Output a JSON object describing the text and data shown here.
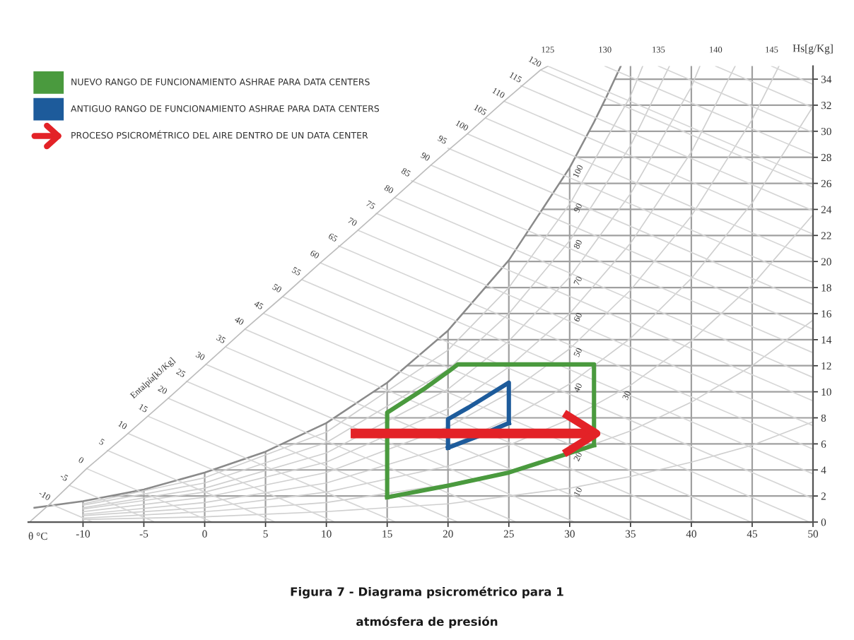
{
  "chart_data": {
    "type": "line",
    "title": "Figura 7 - Diagrama psicrométrico para 1\natmósfera de presión",
    "xlabel": "θ °C",
    "ylabel": "Hs[g/Kg]",
    "xlim": [
      -14.5,
      50
    ],
    "ylim": [
      0,
      35
    ],
    "xticks": [
      -10,
      -5,
      0,
      5,
      10,
      15,
      20,
      25,
      30,
      35,
      40,
      45,
      50
    ],
    "yticks": [
      0,
      2,
      4,
      6,
      8,
      10,
      12,
      14,
      16,
      18,
      20,
      22,
      24,
      26,
      28,
      30,
      32,
      34
    ],
    "grid": true,
    "legend": "top left",
    "series": [
      {
        "color": "#8a8a8a",
        "x": [
          -14,
          -10,
          -5,
          0,
          5,
          10,
          15,
          20,
          25,
          30,
          32,
          33,
          34.2
        ],
        "values": [
          1.1,
          1.6,
          2.5,
          3.8,
          5.4,
          7.6,
          10.7,
          14.7,
          20.1,
          27.2,
          30.7,
          32.6,
          35
        ]
      },
      {
        "color": "#cfcfcf",
        "x": [
          -10,
          0,
          10,
          20,
          25,
          30,
          35,
          40,
          45,
          50
        ],
        "values": [
          0.2,
          0.4,
          0.8,
          1.4,
          2.0,
          2.6,
          3.5,
          4.6,
          5.9,
          7.7
        ]
      },
      {
        "color": "#cfcfcf",
        "x": [
          -10,
          0,
          10,
          20,
          25,
          30,
          35,
          40,
          45,
          50
        ],
        "values": [
          0.3,
          0.8,
          1.5,
          2.9,
          3.9,
          5.3,
          7.0,
          9.2,
          12.0,
          15.5
        ]
      },
      {
        "color": "#cfcfcf",
        "x": [
          -10,
          0,
          10,
          20,
          25,
          30,
          35,
          40,
          45,
          50
        ],
        "values": [
          0.5,
          1.1,
          2.3,
          4.3,
          5.9,
          7.9,
          10.5,
          13.9,
          18.2,
          23.6
        ]
      },
      {
        "color": "#cfcfcf",
        "x": [
          -10,
          0,
          10,
          20,
          25,
          30,
          35,
          40,
          45,
          50
        ],
        "values": [
          0.6,
          1.5,
          3.0,
          5.8,
          7.9,
          10.6,
          14.1,
          18.7,
          24.5,
          31.9
        ]
      },
      {
        "color": "#cfcfcf",
        "x": [
          -10,
          0,
          10,
          20,
          25,
          30,
          35,
          40,
          45,
          47.2
        ],
        "values": [
          0.8,
          1.9,
          3.8,
          7.3,
          9.9,
          13.3,
          17.8,
          23.5,
          30.9,
          35
        ]
      },
      {
        "color": "#cfcfcf",
        "x": [
          -10,
          0,
          10,
          20,
          25,
          30,
          35,
          40,
          43.6
        ],
        "values": [
          1.0,
          2.3,
          4.6,
          8.7,
          11.9,
          16.0,
          21.4,
          28.4,
          35
        ]
      },
      {
        "color": "#cfcfcf",
        "x": [
          -10,
          0,
          10,
          20,
          25,
          30,
          35,
          40,
          40.7
        ],
        "values": [
          1.1,
          2.6,
          5.3,
          10.2,
          13.9,
          18.8,
          25.2,
          33.4,
          35
        ]
      },
      {
        "color": "#cfcfcf",
        "x": [
          -10,
          0,
          10,
          20,
          25,
          30,
          35,
          38.2
        ],
        "values": [
          1.3,
          3.0,
          6.1,
          11.7,
          16.0,
          21.6,
          28.9,
          35
        ]
      },
      {
        "color": "#cfcfcf",
        "x": [
          -10,
          0,
          10,
          20,
          25,
          30,
          35,
          36.0
        ],
        "values": [
          1.4,
          3.4,
          6.9,
          13.2,
          18.0,
          24.4,
          32.7,
          35
        ]
      },
      {
        "color": "#d6d6d6",
        "x": [
          -12.7,
          -9.2
        ],
        "values": [
          1.4,
          0
        ]
      },
      {
        "color": "#d6d6d6",
        "x": [
          -11.1,
          -4.1
        ],
        "values": [
          2.8,
          0
        ]
      },
      {
        "color": "#d6d6d6",
        "x": [
          -9.7,
          0.6
        ],
        "values": [
          4.1,
          0
        ]
      },
      {
        "color": "#d6d6d6",
        "x": [
          -8.0,
          5.8
        ],
        "values": [
          5.5,
          0
        ]
      },
      {
        "color": "#d6d6d6",
        "x": [
          -6.3,
          10.7
        ],
        "values": [
          6.8,
          0
        ]
      },
      {
        "color": "#d6d6d6",
        "x": [
          -4.6,
          15.7
        ],
        "values": [
          8.1,
          0
        ]
      },
      {
        "color": "#d6d6d6",
        "x": [
          -3.0,
          20.8
        ],
        "values": [
          9.5,
          0
        ]
      },
      {
        "color": "#d6d6d6",
        "x": [
          -1.5,
          25.6
        ],
        "values": [
          10.8,
          0
        ]
      },
      {
        "color": "#d6d6d6",
        "x": [
          0.1,
          30.4
        ],
        "values": [
          12.1,
          0
        ]
      },
      {
        "color": "#d6d6d6",
        "x": [
          1.8,
          35.3
        ],
        "values": [
          13.4,
          0
        ]
      },
      {
        "color": "#d6d6d6",
        "x": [
          3.3,
          40.3
        ],
        "values": [
          14.8,
          0
        ]
      },
      {
        "color": "#d6d6d6",
        "x": [
          4.9,
          44.9
        ],
        "values": [
          16.0,
          0
        ]
      },
      {
        "color": "#d6d6d6",
        "x": [
          6.4,
          49.7
        ],
        "values": [
          17.3,
          0
        ]
      },
      {
        "color": "#d6d6d6",
        "x": [
          8.0,
          50
        ],
        "values": [
          18.6,
          1.8
        ]
      },
      {
        "color": "#d6d6d6",
        "x": [
          9.5,
          50
        ],
        "values": [
          19.9,
          3.7
        ]
      },
      {
        "color": "#d6d6d6",
        "x": [
          11.0,
          50
        ],
        "values": [
          21.2,
          5.6
        ]
      },
      {
        "color": "#d6d6d6",
        "x": [
          12.6,
          50
        ],
        "values": [
          22.4,
          7.4
        ]
      },
      {
        "color": "#d6d6d6",
        "x": [
          14.1,
          50
        ],
        "values": [
          23.7,
          9.3
        ]
      },
      {
        "color": "#d6d6d6",
        "x": [
          15.6,
          50
        ],
        "values": [
          24.9,
          11.1
        ]
      },
      {
        "color": "#d6d6d6",
        "x": [
          17.0,
          50
        ],
        "values": [
          26.2,
          13.0
        ]
      },
      {
        "color": "#d6d6d6",
        "x": [
          18.6,
          50
        ],
        "values": [
          27.4,
          14.8
        ]
      },
      {
        "color": "#d6d6d6",
        "x": [
          20.0,
          50
        ],
        "values": [
          28.7,
          16.7
        ]
      },
      {
        "color": "#d6d6d6",
        "x": [
          21.6,
          50
        ],
        "values": [
          29.8,
          18.4
        ]
      },
      {
        "color": "#d6d6d6",
        "x": [
          23.1,
          50
        ],
        "values": [
          31.0,
          20.2
        ]
      },
      {
        "color": "#d6d6d6",
        "x": [
          24.6,
          50
        ],
        "values": [
          32.3,
          22.1
        ]
      },
      {
        "color": "#d6d6d6",
        "x": [
          26.0,
          50
        ],
        "values": [
          33.5,
          23.9
        ]
      },
      {
        "color": "#d6d6d6",
        "x": [
          27.6,
          50
        ],
        "values": [
          34.7,
          25.7
        ]
      },
      {
        "color": "#d6d6d6",
        "x": [
          28.2,
          50
        ],
        "values": [
          35,
          26.3
        ]
      },
      {
        "color": "#d6d6d6",
        "x": [
          32.9,
          50
        ],
        "values": [
          35,
          28.2
        ]
      },
      {
        "color": "#d6d6d6",
        "x": [
          37.3,
          50
        ],
        "values": [
          35,
          29.9
        ]
      },
      {
        "color": "#d6d6d6",
        "x": [
          42.0,
          50
        ],
        "values": [
          35,
          31.8
        ]
      },
      {
        "color": "#d6d6d6",
        "x": [
          46.6,
          50
        ],
        "values": [
          35,
          33.6
        ]
      },
      {
        "color": "#bdbdbd",
        "x": [
          -14.4,
          -12.7,
          -9.7,
          -6.3,
          -3.0,
          0.1,
          3.3,
          6.4,
          9.5,
          12.6,
          15.6,
          18.6,
          21.6,
          24.6,
          27.6,
          28.2
        ],
        "values": [
          0,
          1.4,
          4.1,
          6.8,
          9.5,
          12.1,
          14.8,
          17.3,
          19.9,
          22.4,
          24.9,
          27.4,
          29.8,
          32.3,
          34.7,
          35
        ]
      },
      {
        "name": "NUEVO RANGO DE FUNCIONAMIENTO ASHRAE PARA DATA CENTERS",
        "color": "#4a9a3e",
        "x": [
          15,
          15,
          18,
          20.1,
          20.8,
          32,
          32
        ],
        "values": [
          1.9,
          8.4,
          10.2,
          11.6,
          12.1,
          12.1,
          5.9
        ]
      },
      {
        "color": "#4a9a3e",
        "x": [
          15,
          20,
          25,
          28,
          32
        ],
        "values": [
          1.9,
          2.8,
          3.8,
          4.7,
          5.9
        ]
      },
      {
        "name": "ANTIGUO RANGO DE FUNCIONAMIENTO ASHRAE PARA DATA CENTERS",
        "color": "#1d5b9b",
        "x": [
          20,
          20,
          21.7,
          25,
          25
        ],
        "values": [
          5.7,
          7.9,
          8.8,
          10.7,
          7.6
        ]
      },
      {
        "color": "#1d5b9b",
        "x": [
          20,
          22.5,
          25
        ],
        "values": [
          5.7,
          6.6,
          7.6
        ]
      },
      {
        "name": "PROCESO PSICROMÉTRICO DEL AIRE DENTRO DE UN DATA CENTER",
        "color": "#e32227",
        "x": [
          12,
          32.2
        ],
        "values": [
          6.8,
          6.8
        ]
      }
    ],
    "annotations": [
      "Entalpía[kJ/Kg]",
      {
        "text": "-10",
        "x": -12.7,
        "y": 1.4
      },
      {
        "text": "-5",
        "x": -11.1,
        "y": 2.8
      },
      {
        "text": "0",
        "x": -9.7,
        "y": 4.1
      },
      {
        "text": "5",
        "x": -8.0,
        "y": 5.5
      },
      {
        "text": "10",
        "x": -6.3,
        "y": 6.8
      },
      {
        "text": "15",
        "x": -4.6,
        "y": 8.1
      },
      {
        "text": "20",
        "x": -3.0,
        "y": 9.5
      },
      {
        "text": "25",
        "x": -1.5,
        "y": 10.8
      },
      {
        "text": "30",
        "x": 0.1,
        "y": 12.1
      },
      {
        "text": "35",
        "x": 1.8,
        "y": 13.4
      },
      {
        "text": "40",
        "x": 3.3,
        "y": 14.8
      },
      {
        "text": "45",
        "x": 4.9,
        "y": 16.0
      },
      {
        "text": "50",
        "x": 6.4,
        "y": 17.3
      },
      {
        "text": "55",
        "x": 8.0,
        "y": 18.6
      },
      {
        "text": "60",
        "x": 9.5,
        "y": 19.9
      },
      {
        "text": "65",
        "x": 11.0,
        "y": 21.2
      },
      {
        "text": "70",
        "x": 12.6,
        "y": 22.4
      },
      {
        "text": "75",
        "x": 14.1,
        "y": 23.7
      },
      {
        "text": "80",
        "x": 15.6,
        "y": 24.9
      },
      {
        "text": "85",
        "x": 17.0,
        "y": 26.2
      },
      {
        "text": "90",
        "x": 18.6,
        "y": 27.4
      },
      {
        "text": "95",
        "x": 20.0,
        "y": 28.7
      },
      {
        "text": "100",
        "x": 21.6,
        "y": 29.8
      },
      {
        "text": "105",
        "x": 23.1,
        "y": 31.0
      },
      {
        "text": "110",
        "x": 24.6,
        "y": 32.3
      },
      {
        "text": "115",
        "x": 26.0,
        "y": 33.5
      },
      {
        "text": "120",
        "x": 27.6,
        "y": 34.7
      },
      {
        "text": "125",
        "x": 28.2,
        "y": 35
      },
      {
        "text": "130",
        "x": 32.9,
        "y": 35
      },
      {
        "text": "135",
        "x": 37.3,
        "y": 35
      },
      {
        "text": "140",
        "x": 42.0,
        "y": 35
      },
      {
        "text": "145",
        "x": 46.6,
        "y": 35
      },
      {
        "text": "100",
        "x": 30,
        "y": 27.2
      },
      {
        "text": "90",
        "x": 30,
        "y": 24.4
      },
      {
        "text": "80",
        "x": 30,
        "y": 21.6
      },
      {
        "text": "70",
        "x": 30,
        "y": 18.8
      },
      {
        "text": "60",
        "x": 30,
        "y": 16.0
      },
      {
        "text": "50",
        "x": 30,
        "y": 13.3
      },
      {
        "text": "40",
        "x": 30,
        "y": 10.6
      },
      {
        "text": "30",
        "x": 34,
        "y": 10.0
      },
      {
        "text": "20",
        "x": 30,
        "y": 5.3
      },
      {
        "text": "10",
        "x": 30,
        "y": 2.6
      }
    ]
  }
}
